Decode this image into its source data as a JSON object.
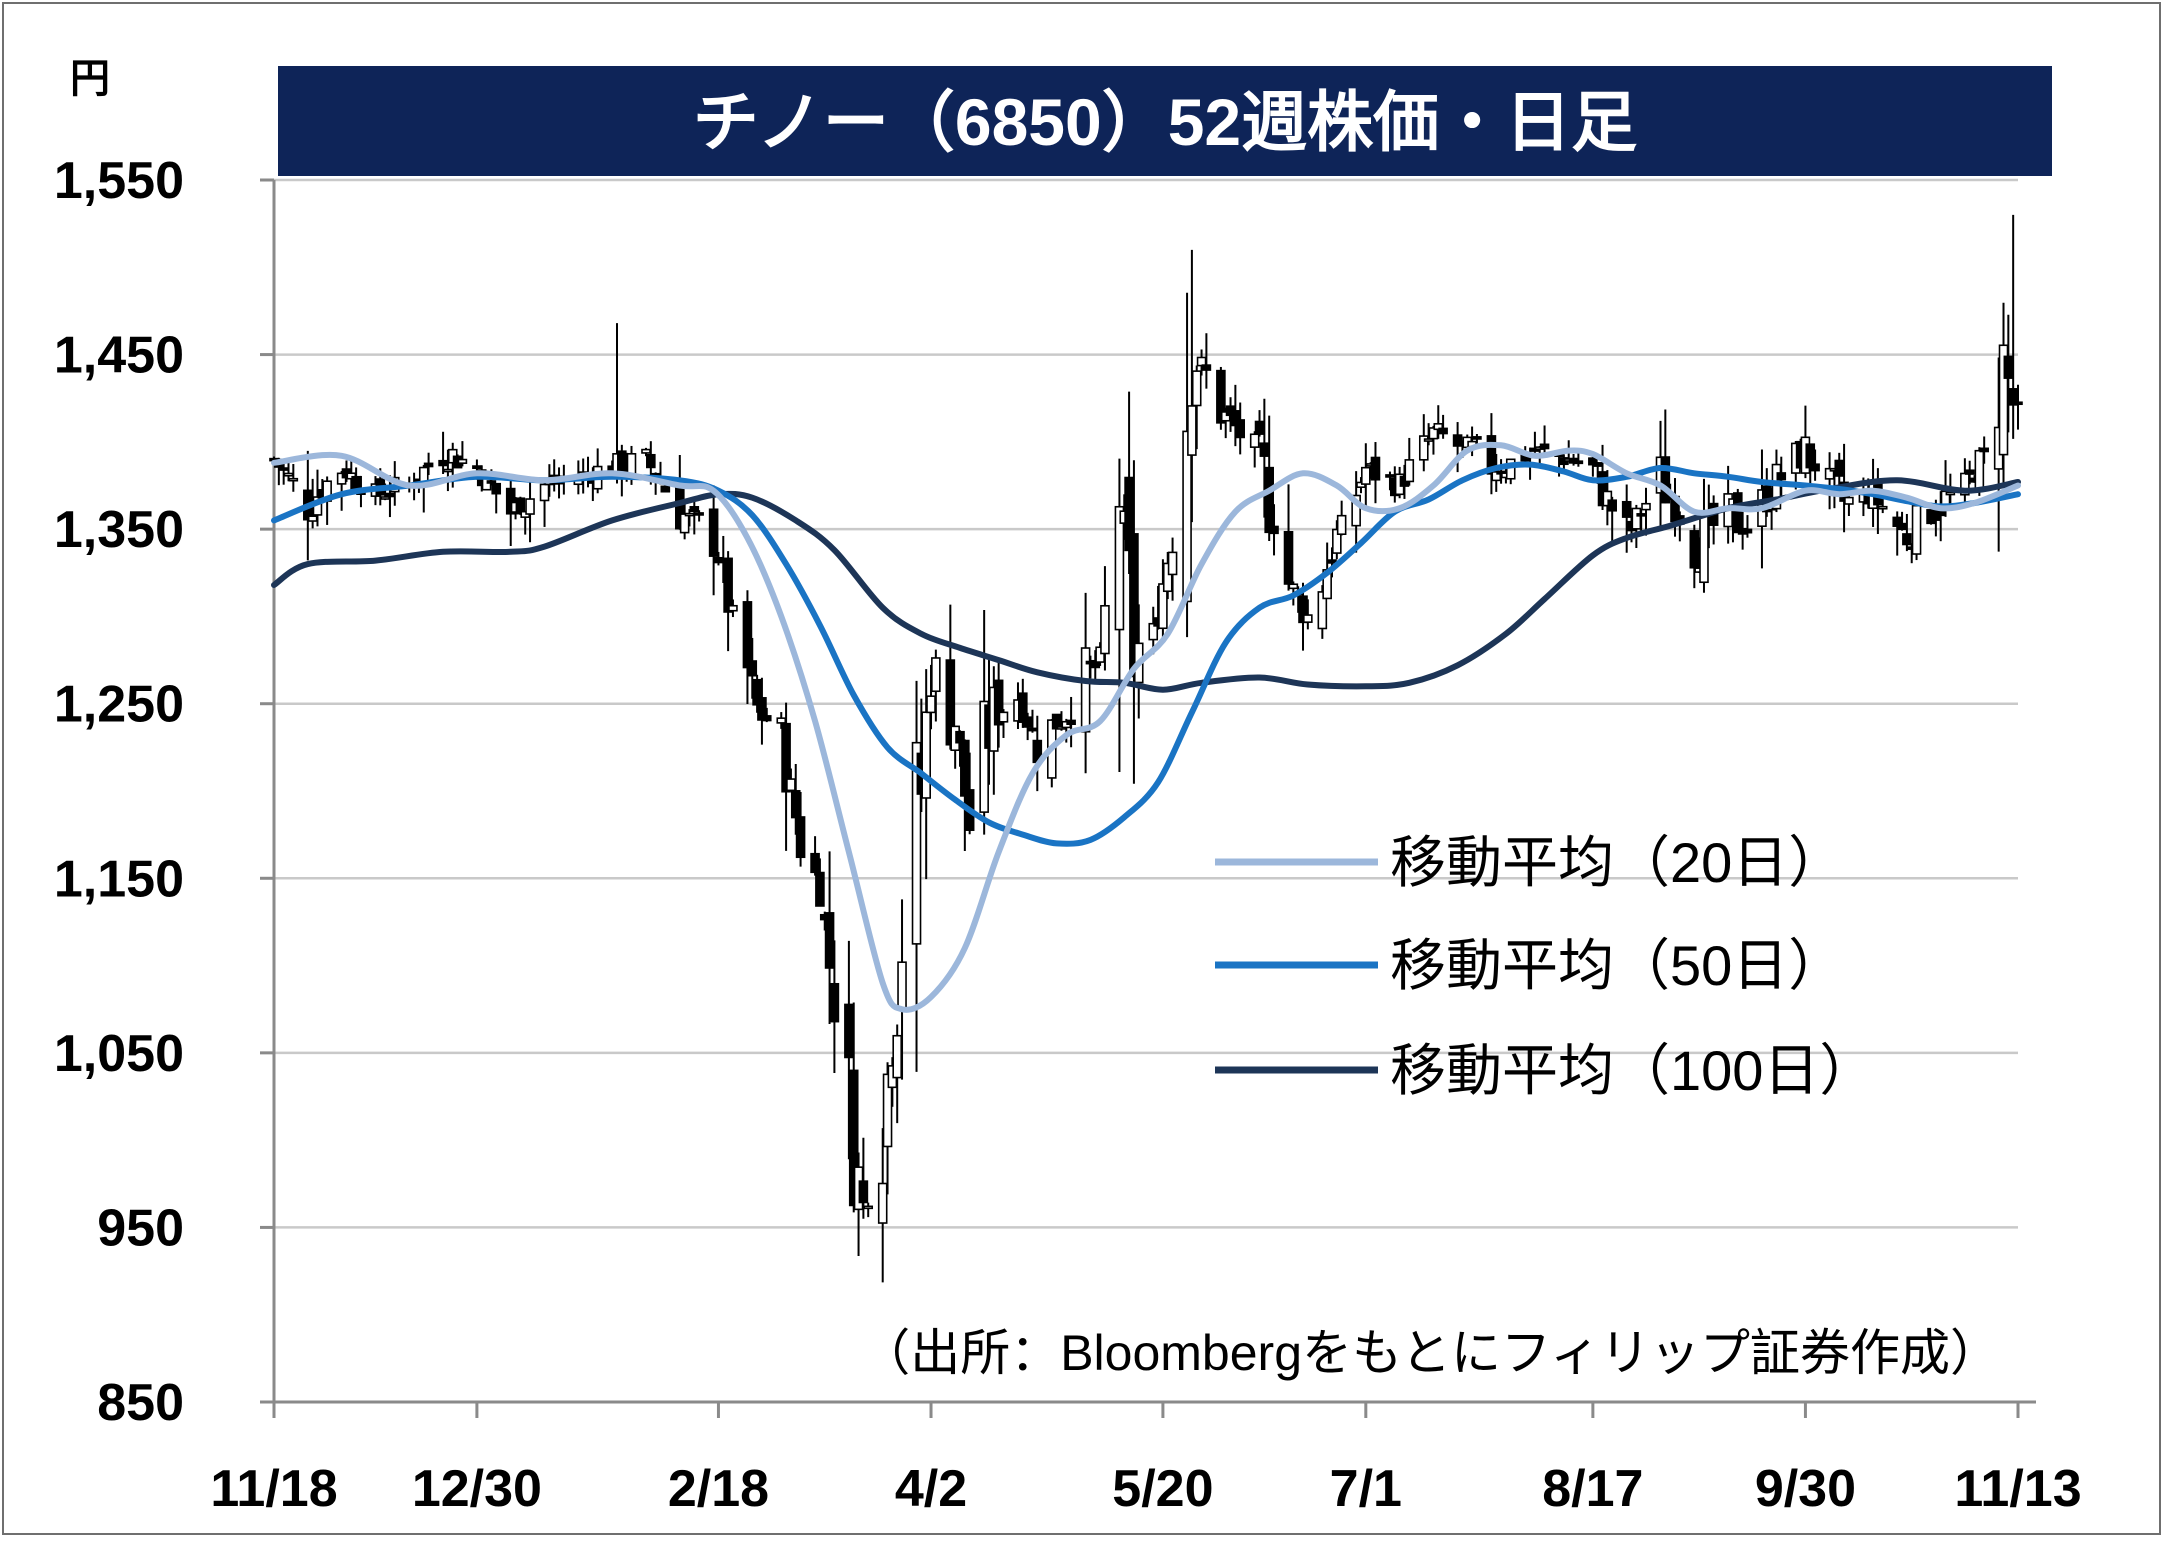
{
  "chart_data": {
    "type": "candlestick",
    "title": "チノー（6850）52週株価・日足",
    "unit": "円",
    "ylim": [
      850,
      1550
    ],
    "yticks": [
      850,
      950,
      1050,
      1150,
      1250,
      1350,
      1450,
      1550
    ],
    "ytick_labels": [
      "850",
      "950",
      "1,050",
      "1,150",
      "1,250",
      "1,350",
      "1,450",
      "1,550"
    ],
    "x_range": [
      "2019-11-18",
      "2020-11-13"
    ],
    "xticks": [
      {
        "date": "2019-11-18",
        "label": "11/18"
      },
      {
        "date": "2019-12-30",
        "label": "12/30"
      },
      {
        "date": "2020-02-18",
        "label": "2/18"
      },
      {
        "date": "2020-04-02",
        "label": "4/2"
      },
      {
        "date": "2020-05-20",
        "label": "5/20"
      },
      {
        "date": "2020-07-01",
        "label": "7/1"
      },
      {
        "date": "2020-08-17",
        "label": "8/17"
      },
      {
        "date": "2020-09-30",
        "label": "9/30"
      },
      {
        "date": "2020-11-13",
        "label": "11/13"
      }
    ],
    "grid": true,
    "legend_position": "center-right",
    "source_note": "（出所：Bloombergをもとにフィリップ証券作成）",
    "close_path": [
      [
        "2019-11-18",
        1390
      ],
      [
        "2019-11-25",
        1365
      ],
      [
        "2019-12-02",
        1385
      ],
      [
        "2019-12-09",
        1370
      ],
      [
        "2019-12-16",
        1375
      ],
      [
        "2019-12-23",
        1395
      ],
      [
        "2019-12-30",
        1385
      ],
      [
        "2020-01-06",
        1360
      ],
      [
        "2020-01-13",
        1375
      ],
      [
        "2020-01-20",
        1380
      ],
      [
        "2020-01-27",
        1385
      ],
      [
        "2020-02-03",
        1390
      ],
      [
        "2020-02-10",
        1360
      ],
      [
        "2020-02-17",
        1345
      ],
      [
        "2020-02-21",
        1300
      ],
      [
        "2020-02-26",
        1245
      ],
      [
        "2020-03-02",
        1235
      ],
      [
        "2020-03-06",
        1170
      ],
      [
        "2020-03-10",
        1145
      ],
      [
        "2020-03-13",
        1080
      ],
      [
        "2020-03-17",
        1000
      ],
      [
        "2020-03-19",
        960
      ],
      [
        "2020-03-23",
        1010
      ],
      [
        "2020-03-25",
        1060
      ],
      [
        "2020-03-27",
        1120
      ],
      [
        "2020-03-31",
        1200
      ],
      [
        "2020-04-02",
        1275
      ],
      [
        "2020-04-07",
        1240
      ],
      [
        "2020-04-10",
        1180
      ],
      [
        "2020-04-15",
        1245
      ],
      [
        "2020-04-20",
        1255
      ],
      [
        "2020-04-24",
        1225
      ],
      [
        "2020-04-30",
        1245
      ],
      [
        "2020-05-07",
        1275
      ],
      [
        "2020-05-11",
        1375
      ],
      [
        "2020-05-14",
        1280
      ],
      [
        "2020-05-18",
        1290
      ],
      [
        "2020-05-22",
        1350
      ],
      [
        "2020-05-26",
        1455
      ],
      [
        "2020-06-02",
        1415
      ],
      [
        "2020-06-09",
        1390
      ],
      [
        "2020-06-15",
        1320
      ],
      [
        "2020-06-19",
        1300
      ],
      [
        "2020-06-25",
        1345
      ],
      [
        "2020-07-01",
        1385
      ],
      [
        "2020-07-08",
        1375
      ],
      [
        "2020-07-15",
        1405
      ],
      [
        "2020-07-22",
        1395
      ],
      [
        "2020-07-29",
        1385
      ],
      [
        "2020-08-05",
        1395
      ],
      [
        "2020-08-12",
        1390
      ],
      [
        "2020-08-17",
        1385
      ],
      [
        "2020-08-24",
        1345
      ],
      [
        "2020-08-31",
        1380
      ],
      [
        "2020-09-07",
        1340
      ],
      [
        "2020-09-14",
        1360
      ],
      [
        "2020-09-18",
        1350
      ],
      [
        "2020-09-25",
        1380
      ],
      [
        "2020-09-30",
        1395
      ],
      [
        "2020-10-07",
        1365
      ],
      [
        "2020-10-14",
        1370
      ],
      [
        "2020-10-21",
        1345
      ],
      [
        "2020-10-28",
        1365
      ],
      [
        "2020-11-02",
        1375
      ],
      [
        "2020-11-06",
        1390
      ],
      [
        "2020-11-10",
        1445
      ],
      [
        "2020-11-13",
        1410
      ]
    ],
    "candle_notes": "Daily candlesticks (white = up, black = down) approximated from the close path; notable highs ~1,510 (late May) and ~1,530 (11/13), low ~955 (mid March).",
    "series": [
      {
        "name": "移動平均（20日）",
        "color": "#9cb7db",
        "points": [
          [
            "2019-11-18",
            1388
          ],
          [
            "2019-12-02",
            1392
          ],
          [
            "2019-12-16",
            1375
          ],
          [
            "2019-12-30",
            1382
          ],
          [
            "2020-01-13",
            1378
          ],
          [
            "2020-01-27",
            1382
          ],
          [
            "2020-02-10",
            1375
          ],
          [
            "2020-02-17",
            1372
          ],
          [
            "2020-02-24",
            1345
          ],
          [
            "2020-03-02",
            1300
          ],
          [
            "2020-03-09",
            1240
          ],
          [
            "2020-03-16",
            1165
          ],
          [
            "2020-03-23",
            1090
          ],
          [
            "2020-03-27",
            1075
          ],
          [
            "2020-04-02",
            1082
          ],
          [
            "2020-04-09",
            1110
          ],
          [
            "2020-04-16",
            1165
          ],
          [
            "2020-04-23",
            1210
          ],
          [
            "2020-04-30",
            1232
          ],
          [
            "2020-05-07",
            1240
          ],
          [
            "2020-05-14",
            1270
          ],
          [
            "2020-05-21",
            1290
          ],
          [
            "2020-05-28",
            1330
          ],
          [
            "2020-06-04",
            1360
          ],
          [
            "2020-06-11",
            1372
          ],
          [
            "2020-06-18",
            1382
          ],
          [
            "2020-06-25",
            1375
          ],
          [
            "2020-07-01",
            1362
          ],
          [
            "2020-07-08",
            1362
          ],
          [
            "2020-07-15",
            1375
          ],
          [
            "2020-07-22",
            1395
          ],
          [
            "2020-07-29",
            1398
          ],
          [
            "2020-08-05",
            1392
          ],
          [
            "2020-08-12",
            1395
          ],
          [
            "2020-08-17",
            1393
          ],
          [
            "2020-08-24",
            1382
          ],
          [
            "2020-08-31",
            1375
          ],
          [
            "2020-09-07",
            1360
          ],
          [
            "2020-09-14",
            1362
          ],
          [
            "2020-09-21",
            1362
          ],
          [
            "2020-09-30",
            1372
          ],
          [
            "2020-10-07",
            1370
          ],
          [
            "2020-10-14",
            1372
          ],
          [
            "2020-10-21",
            1368
          ],
          [
            "2020-10-28",
            1362
          ],
          [
            "2020-11-04",
            1365
          ],
          [
            "2020-11-13",
            1375
          ]
        ]
      },
      {
        "name": "移動平均（50日）",
        "color": "#1a74c4",
        "points": [
          [
            "2019-11-18",
            1355
          ],
          [
            "2019-12-02",
            1370
          ],
          [
            "2019-12-16",
            1375
          ],
          [
            "2019-12-30",
            1380
          ],
          [
            "2020-01-13",
            1378
          ],
          [
            "2020-01-27",
            1380
          ],
          [
            "2020-02-10",
            1378
          ],
          [
            "2020-02-18",
            1372
          ],
          [
            "2020-02-25",
            1358
          ],
          [
            "2020-03-03",
            1330
          ],
          [
            "2020-03-10",
            1295
          ],
          [
            "2020-03-17",
            1255
          ],
          [
            "2020-03-24",
            1225
          ],
          [
            "2020-03-31",
            1210
          ],
          [
            "2020-04-07",
            1195
          ],
          [
            "2020-04-14",
            1182
          ],
          [
            "2020-04-21",
            1175
          ],
          [
            "2020-04-28",
            1170
          ],
          [
            "2020-05-05",
            1172
          ],
          [
            "2020-05-12",
            1185
          ],
          [
            "2020-05-19",
            1205
          ],
          [
            "2020-05-26",
            1245
          ],
          [
            "2020-06-02",
            1285
          ],
          [
            "2020-06-09",
            1305
          ],
          [
            "2020-06-16",
            1312
          ],
          [
            "2020-06-23",
            1325
          ],
          [
            "2020-06-30",
            1342
          ],
          [
            "2020-07-07",
            1360
          ],
          [
            "2020-07-14",
            1367
          ],
          [
            "2020-07-21",
            1378
          ],
          [
            "2020-07-28",
            1385
          ],
          [
            "2020-08-04",
            1387
          ],
          [
            "2020-08-11",
            1383
          ],
          [
            "2020-08-17",
            1378
          ],
          [
            "2020-08-24",
            1380
          ],
          [
            "2020-08-31",
            1385
          ],
          [
            "2020-09-07",
            1382
          ],
          [
            "2020-09-14",
            1380
          ],
          [
            "2020-09-21",
            1377
          ],
          [
            "2020-09-30",
            1375
          ],
          [
            "2020-10-07",
            1373
          ],
          [
            "2020-10-14",
            1370
          ],
          [
            "2020-10-21",
            1366
          ],
          [
            "2020-10-28",
            1363
          ],
          [
            "2020-11-04",
            1365
          ],
          [
            "2020-11-13",
            1370
          ]
        ]
      },
      {
        "name": "移動平均（100日）",
        "color": "#1d3557",
        "points": [
          [
            "2019-11-18",
            1318
          ],
          [
            "2019-11-25",
            1330
          ],
          [
            "2019-12-09",
            1332
          ],
          [
            "2019-12-23",
            1337
          ],
          [
            "2020-01-06",
            1337
          ],
          [
            "2020-01-13",
            1340
          ],
          [
            "2020-01-27",
            1355
          ],
          [
            "2020-02-10",
            1365
          ],
          [
            "2020-02-18",
            1370
          ],
          [
            "2020-02-25",
            1368
          ],
          [
            "2020-03-05",
            1355
          ],
          [
            "2020-03-13",
            1338
          ],
          [
            "2020-03-23",
            1305
          ],
          [
            "2020-03-31",
            1290
          ],
          [
            "2020-04-08",
            1282
          ],
          [
            "2020-04-16",
            1275
          ],
          [
            "2020-04-24",
            1268
          ],
          [
            "2020-05-04",
            1263
          ],
          [
            "2020-05-12",
            1262
          ],
          [
            "2020-05-20",
            1258
          ],
          [
            "2020-05-28",
            1262
          ],
          [
            "2020-06-09",
            1265
          ],
          [
            "2020-06-19",
            1261
          ],
          [
            "2020-07-01",
            1260
          ],
          [
            "2020-07-10",
            1262
          ],
          [
            "2020-07-20",
            1272
          ],
          [
            "2020-07-30",
            1290
          ],
          [
            "2020-08-07",
            1310
          ],
          [
            "2020-08-17",
            1335
          ],
          [
            "2020-08-24",
            1345
          ],
          [
            "2020-09-02",
            1352
          ],
          [
            "2020-09-14",
            1362
          ],
          [
            "2020-09-24",
            1367
          ],
          [
            "2020-10-05",
            1373
          ],
          [
            "2020-10-19",
            1378
          ],
          [
            "2020-11-02",
            1372
          ],
          [
            "2020-11-13",
            1377
          ]
        ]
      }
    ]
  }
}
